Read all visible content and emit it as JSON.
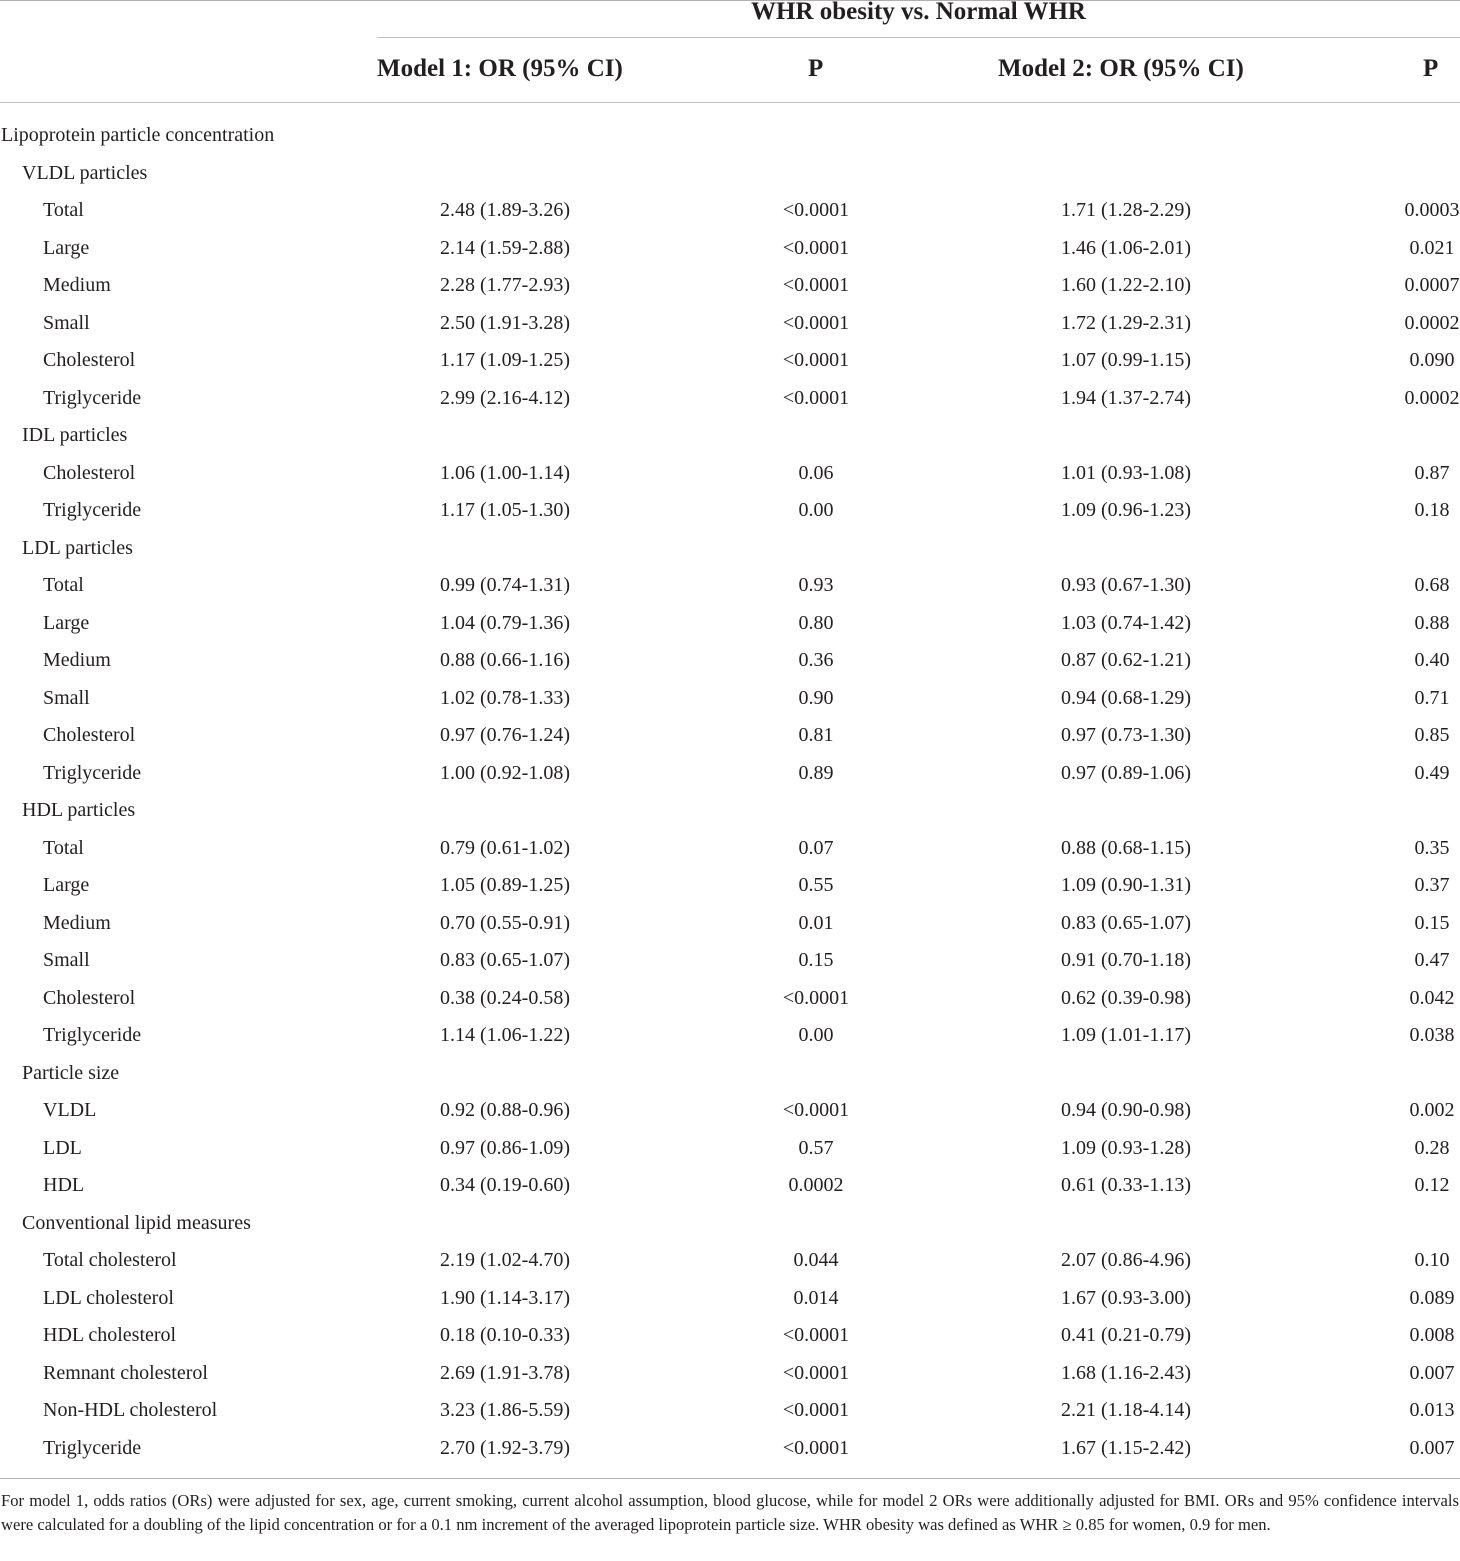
{
  "table": {
    "group_header": "WHR obesity vs. Normal WHR",
    "columns": {
      "model1": "Model 1: OR (95% CI)",
      "p1": "P",
      "model2": "Model 2: OR (95% CI)",
      "p2": "P"
    },
    "rows": [
      {
        "level": 0,
        "label": "Lipoprotein particle concentration"
      },
      {
        "level": 1,
        "label": "VLDL particles"
      },
      {
        "level": 2,
        "label": "Total",
        "or1": "2.48 (1.89-3.26)",
        "p1": "<0.0001",
        "or2": "1.71 (1.28-2.29)",
        "p2": "0.0003"
      },
      {
        "level": 2,
        "label": "Large",
        "or1": "2.14 (1.59-2.88)",
        "p1": "<0.0001",
        "or2": "1.46 (1.06-2.01)",
        "p2": "0.021"
      },
      {
        "level": 2,
        "label": "Medium",
        "or1": "2.28 (1.77-2.93)",
        "p1": "<0.0001",
        "or2": "1.60 (1.22-2.10)",
        "p2": "0.0007"
      },
      {
        "level": 2,
        "label": "Small",
        "or1": "2.50 (1.91-3.28)",
        "p1": "<0.0001",
        "or2": "1.72 (1.29-2.31)",
        "p2": "0.0002"
      },
      {
        "level": 2,
        "label": "Cholesterol",
        "or1": "1.17 (1.09-1.25)",
        "p1": "<0.0001",
        "or2": "1.07 (0.99-1.15)",
        "p2": "0.090"
      },
      {
        "level": 2,
        "label": "Triglyceride",
        "or1": "2.99 (2.16-4.12)",
        "p1": "<0.0001",
        "or2": "1.94 (1.37-2.74)",
        "p2": "0.0002"
      },
      {
        "level": 1,
        "label": "IDL particles"
      },
      {
        "level": 2,
        "label": "Cholesterol",
        "or1": "1.06 (1.00-1.14)",
        "p1": "0.06",
        "or2": "1.01 (0.93-1.08)",
        "p2": "0.87"
      },
      {
        "level": 2,
        "label": "Triglyceride",
        "or1": "1.17 (1.05-1.30)",
        "p1": "0.00",
        "or2": "1.09 (0.96-1.23)",
        "p2": "0.18"
      },
      {
        "level": 1,
        "label": "LDL particles"
      },
      {
        "level": 2,
        "label": "Total",
        "or1": "0.99 (0.74-1.31)",
        "p1": "0.93",
        "or2": "0.93 (0.67-1.30)",
        "p2": "0.68"
      },
      {
        "level": 2,
        "label": "Large",
        "or1": "1.04 (0.79-1.36)",
        "p1": "0.80",
        "or2": "1.03 (0.74-1.42)",
        "p2": "0.88"
      },
      {
        "level": 2,
        "label": "Medium",
        "or1": "0.88 (0.66-1.16)",
        "p1": "0.36",
        "or2": "0.87 (0.62-1.21)",
        "p2": "0.40"
      },
      {
        "level": 2,
        "label": "Small",
        "or1": "1.02 (0.78-1.33)",
        "p1": "0.90",
        "or2": "0.94 (0.68-1.29)",
        "p2": "0.71"
      },
      {
        "level": 2,
        "label": "Cholesterol",
        "or1": "0.97 (0.76-1.24)",
        "p1": "0.81",
        "or2": "0.97 (0.73-1.30)",
        "p2": "0.85"
      },
      {
        "level": 2,
        "label": "Triglyceride",
        "or1": "1.00 (0.92-1.08)",
        "p1": "0.89",
        "or2": "0.97 (0.89-1.06)",
        "p2": "0.49"
      },
      {
        "level": 1,
        "label": "HDL particles"
      },
      {
        "level": 2,
        "label": "Total",
        "or1": "0.79 (0.61-1.02)",
        "p1": "0.07",
        "or2": "0.88 (0.68-1.15)",
        "p2": "0.35"
      },
      {
        "level": 2,
        "label": "Large",
        "or1": "1.05 (0.89-1.25)",
        "p1": "0.55",
        "or2": "1.09 (0.90-1.31)",
        "p2": "0.37"
      },
      {
        "level": 2,
        "label": "Medium",
        "or1": "0.70 (0.55-0.91)",
        "p1": "0.01",
        "or2": "0.83 (0.65-1.07)",
        "p2": "0.15"
      },
      {
        "level": 2,
        "label": "Small",
        "or1": "0.83 (0.65-1.07)",
        "p1": "0.15",
        "or2": "0.91 (0.70-1.18)",
        "p2": "0.47"
      },
      {
        "level": 2,
        "label": "Cholesterol",
        "or1": "0.38 (0.24-0.58)",
        "p1": "<0.0001",
        "or2": "0.62 (0.39-0.98)",
        "p2": "0.042"
      },
      {
        "level": 2,
        "label": "Triglyceride",
        "or1": "1.14 (1.06-1.22)",
        "p1": "0.00",
        "or2": "1.09 (1.01-1.17)",
        "p2": "0.038"
      },
      {
        "level": 1,
        "label": "Particle size"
      },
      {
        "level": 2,
        "label": "VLDL",
        "or1": "0.92 (0.88-0.96)",
        "p1": "<0.0001",
        "or2": "0.94 (0.90-0.98)",
        "p2": "0.002"
      },
      {
        "level": 2,
        "label": "LDL",
        "or1": "0.97 (0.86-1.09)",
        "p1": "0.57",
        "or2": "1.09 (0.93-1.28)",
        "p2": "0.28"
      },
      {
        "level": 2,
        "label": "HDL",
        "or1": "0.34 (0.19-0.60)",
        "p1": "0.0002",
        "or2": "0.61 (0.33-1.13)",
        "p2": "0.12"
      },
      {
        "level": 1,
        "label": "Conventional lipid measures"
      },
      {
        "level": 2,
        "label": "Total cholesterol",
        "or1": "2.19 (1.02-4.70)",
        "p1": "0.044",
        "or2": "2.07 (0.86-4.96)",
        "p2": "0.10"
      },
      {
        "level": 2,
        "label": "LDL cholesterol",
        "or1": "1.90 (1.14-3.17)",
        "p1": "0.014",
        "or2": "1.67 (0.93-3.00)",
        "p2": "0.089"
      },
      {
        "level": 2,
        "label": "HDL cholesterol",
        "or1": "0.18 (0.10-0.33)",
        "p1": "<0.0001",
        "or2": "0.41 (0.21-0.79)",
        "p2": "0.008"
      },
      {
        "level": 2,
        "label": "Remnant cholesterol",
        "or1": "2.69 (1.91-3.78)",
        "p1": "<0.0001",
        "or2": "1.68 (1.16-2.43)",
        "p2": "0.007"
      },
      {
        "level": 2,
        "label": "Non-HDL cholesterol",
        "or1": "3.23 (1.86-5.59)",
        "p1": "<0.0001",
        "or2": "2.21 (1.18-4.14)",
        "p2": "0.013"
      },
      {
        "level": 2,
        "label": "Triglyceride",
        "or1": "2.70 (1.92-3.79)",
        "p1": "<0.0001",
        "or2": "1.67 (1.15-2.42)",
        "p2": "0.007"
      }
    ],
    "footnote": "For model 1, odds ratios (ORs) were adjusted for sex, age, current smoking, current alcohol assumption, blood glucose, while for model 2 ORs were additionally adjusted for BMI. ORs and 95% confidence intervals were calculated for a doubling of the lipid concentration or for a 0.1 nm increment of the averaged lipoprotein particle size. WHR obesity was defined as WHR ≥ 0.85 for women, 0.9 for men."
  }
}
